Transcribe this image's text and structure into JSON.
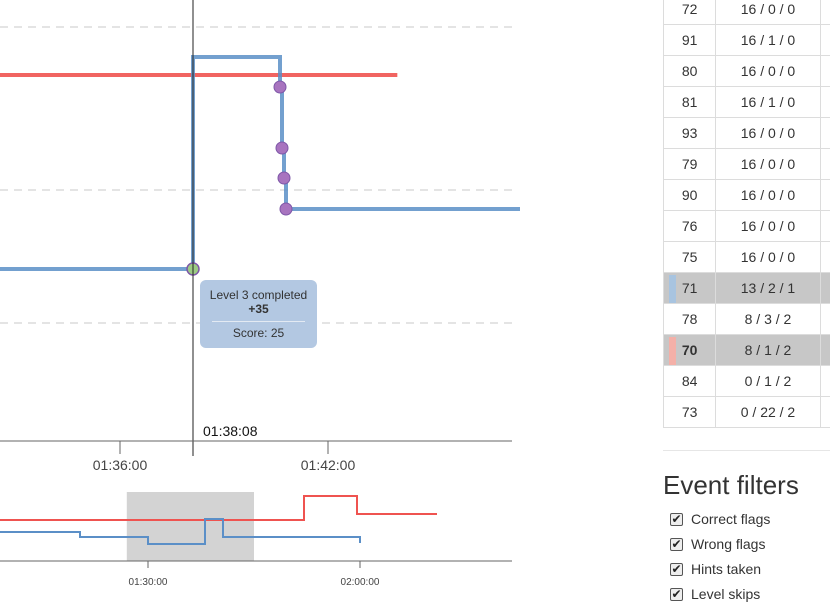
{
  "chart_data": [
    {
      "type": "line",
      "title": "",
      "xlabel": "",
      "ylabel": "",
      "x_axis": {
        "ticks": [
          "01:36:00",
          "01:42:00"
        ]
      },
      "cursor_time": "01:38:08",
      "series": [
        {
          "color": "#ef5350",
          "steps": [
            [
              "01:32:24",
              "top"
            ],
            [
              "01:44:00",
              "top"
            ]
          ]
        },
        {
          "color": "#5b8fc7",
          "steps": [
            [
              "01:32:24",
              "low"
            ],
            [
              "01:38:08",
              "high"
            ],
            [
              "01:40:40",
              "mid"
            ],
            [
              "01:44:00",
              "mid"
            ]
          ]
        }
      ],
      "tooltip": {
        "title": "Level 3 completed",
        "points": "+35",
        "score": "Score: 25"
      }
    },
    {
      "type": "line",
      "title": "",
      "x_axis": {
        "ticks": [
          "01:30:00",
          "02:00:00"
        ]
      },
      "selection": [
        "01:27:00",
        "01:45:00"
      ]
    }
  ],
  "scoreboard": {
    "rows": [
      {
        "id": "72",
        "value": "16 / 0 / 0"
      },
      {
        "id": "91",
        "value": "16 / 1 / 0"
      },
      {
        "id": "80",
        "value": "16 / 0 / 0"
      },
      {
        "id": "81",
        "value": "16 / 1 / 0"
      },
      {
        "id": "93",
        "value": "16 / 0 / 0"
      },
      {
        "id": "79",
        "value": "16 / 0 / 0"
      },
      {
        "id": "90",
        "value": "16 / 0 / 0"
      },
      {
        "id": "76",
        "value": "16 / 0 / 0"
      },
      {
        "id": "75",
        "value": "16 / 0 / 0"
      },
      {
        "id": "71",
        "value": "13 / 2 / 1",
        "highlight": true,
        "marker_color": "#a8c4e0"
      },
      {
        "id": "78",
        "value": "8 / 3 / 2"
      },
      {
        "id": "70",
        "value": "8 / 1 / 2",
        "highlight": true,
        "bold": true,
        "marker_color": "#f4b0a8"
      },
      {
        "id": "84",
        "value": "0 / 1 / 2"
      },
      {
        "id": "73",
        "value": "0 / 22 / 2"
      }
    ]
  },
  "filters": {
    "title": "Event filters",
    "items": [
      {
        "label": "Correct flags",
        "checked": true
      },
      {
        "label": "Wrong flags",
        "checked": true
      },
      {
        "label": "Hints taken",
        "checked": true
      },
      {
        "label": "Level skips",
        "checked": true
      }
    ]
  }
}
